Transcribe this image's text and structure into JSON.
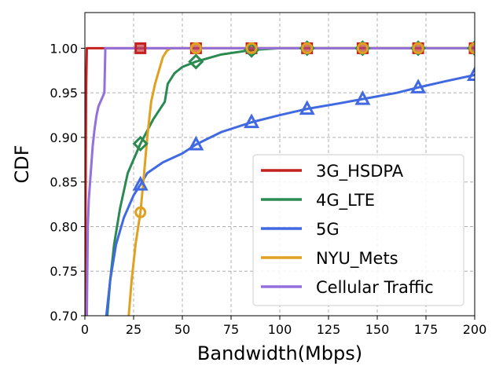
{
  "chart_data": {
    "type": "line",
    "title": "",
    "xlabel": "Bandwidth(Mbps)",
    "ylabel": "CDF",
    "xlim": [
      0,
      200
    ],
    "ylim": [
      0.7,
      1.04
    ],
    "xticks": [
      "0",
      "25",
      "50",
      "75",
      "100",
      "125",
      "150",
      "175",
      "200"
    ],
    "yticks": [
      "0.70",
      "0.75",
      "0.80",
      "0.85",
      "0.90",
      "0.95",
      "1.00"
    ],
    "grid": true,
    "legend_position": "lower-right",
    "series": [
      {
        "name": "3G_HSDPA",
        "color": "#c42020",
        "marker": "square",
        "points": [
          [
            0,
            0.7
          ],
          [
            0.3,
            0.8
          ],
          [
            0.6,
            0.95
          ],
          [
            1,
            1.0
          ],
          [
            200,
            1.0
          ]
        ],
        "markers": [
          [
            28.5,
            1.0
          ],
          [
            57,
            1.0
          ],
          [
            85.5,
            1.0
          ],
          [
            114,
            1.0
          ],
          [
            142.5,
            1.0
          ],
          [
            171,
            1.0
          ],
          [
            200,
            1.0
          ]
        ]
      },
      {
        "name": "4G_LTE",
        "color": "#2a8a50",
        "marker": "diamond",
        "points": [
          [
            11.5,
            0.7
          ],
          [
            13,
            0.74
          ],
          [
            15,
            0.78
          ],
          [
            18,
            0.82
          ],
          [
            22,
            0.86
          ],
          [
            28.5,
            0.893
          ],
          [
            35,
            0.92
          ],
          [
            41,
            0.94
          ],
          [
            42.5,
            0.96
          ],
          [
            46,
            0.972
          ],
          [
            50,
            0.979
          ],
          [
            57,
            0.985
          ],
          [
            70,
            0.993
          ],
          [
            85.5,
            0.998
          ],
          [
            100,
            1.0
          ],
          [
            200,
            1.0
          ]
        ],
        "markers": [
          [
            28.5,
            0.893
          ],
          [
            57,
            0.985
          ],
          [
            85.5,
            0.998
          ],
          [
            114,
            1.0
          ],
          [
            142.5,
            1.0
          ],
          [
            171,
            1.0
          ],
          [
            200,
            1.0
          ]
        ]
      },
      {
        "name": "5G",
        "color": "#4169e1",
        "marker": "triangle",
        "points": [
          [
            11,
            0.7
          ],
          [
            13,
            0.74
          ],
          [
            16,
            0.78
          ],
          [
            20,
            0.81
          ],
          [
            25,
            0.835
          ],
          [
            28.5,
            0.847
          ],
          [
            32,
            0.86
          ],
          [
            40,
            0.872
          ],
          [
            50,
            0.882
          ],
          [
            57,
            0.892
          ],
          [
            70,
            0.906
          ],
          [
            85.5,
            0.917
          ],
          [
            100,
            0.925
          ],
          [
            114,
            0.932
          ],
          [
            130,
            0.938
          ],
          [
            142.5,
            0.943
          ],
          [
            160,
            0.95
          ],
          [
            171,
            0.956
          ],
          [
            185,
            0.963
          ],
          [
            200,
            0.97
          ]
        ],
        "markers": [
          [
            28.5,
            0.847
          ],
          [
            57,
            0.892
          ],
          [
            85.5,
            0.917
          ],
          [
            114,
            0.932
          ],
          [
            142.5,
            0.943
          ],
          [
            171,
            0.956
          ],
          [
            200,
            0.97
          ]
        ]
      },
      {
        "name": "NYU_Mets",
        "color": "#e0a020",
        "marker": "circle",
        "points": [
          [
            22.5,
            0.7
          ],
          [
            24,
            0.74
          ],
          [
            26,
            0.78
          ],
          [
            28.5,
            0.816
          ],
          [
            30,
            0.85
          ],
          [
            32,
            0.9
          ],
          [
            34,
            0.94
          ],
          [
            36,
            0.96
          ],
          [
            38,
            0.975
          ],
          [
            40,
            0.99
          ],
          [
            42,
            0.997
          ],
          [
            44,
            1.0
          ],
          [
            200,
            1.0
          ]
        ],
        "markers": [
          [
            28.5,
            0.816
          ],
          [
            57,
            1.0
          ],
          [
            85.5,
            1.0
          ],
          [
            114,
            1.0
          ],
          [
            142.5,
            1.0
          ],
          [
            171,
            1.0
          ],
          [
            200,
            1.0
          ]
        ]
      },
      {
        "name": "Cellular Traffic",
        "color": "#9370db",
        "marker": "none",
        "points": [
          [
            1,
            0.7
          ],
          [
            1.5,
            0.8
          ],
          [
            2,
            0.83
          ],
          [
            3,
            0.86
          ],
          [
            4,
            0.89
          ],
          [
            5,
            0.91
          ],
          [
            6,
            0.925
          ],
          [
            7,
            0.935
          ],
          [
            8,
            0.94
          ],
          [
            9,
            0.945
          ],
          [
            10,
            0.95
          ],
          [
            10.5,
            1.0
          ],
          [
            200,
            1.0
          ]
        ],
        "markers": []
      }
    ]
  }
}
